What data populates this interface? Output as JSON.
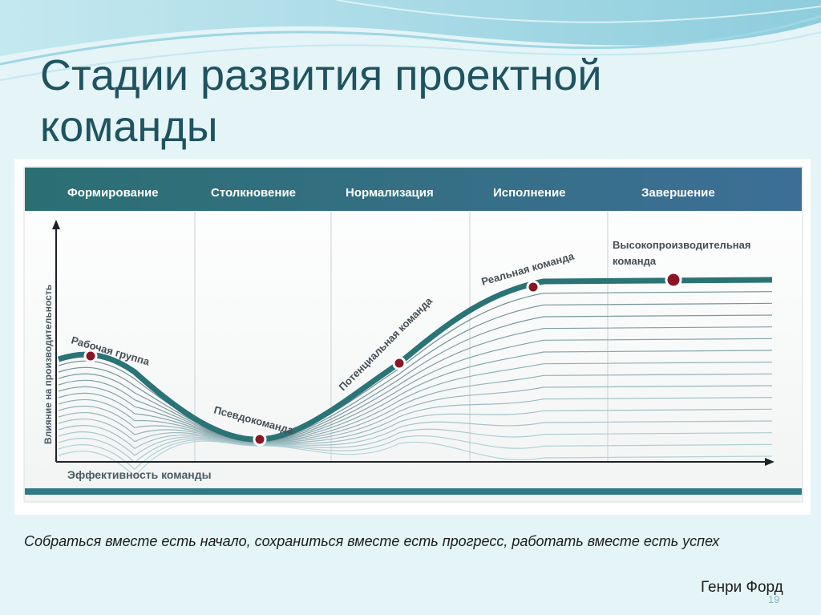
{
  "slide": {
    "title": "Стадии развития проектной команды",
    "page_number": "19"
  },
  "diagram": {
    "phases": [
      "Формирование",
      "Столкновение",
      "Нормализация",
      "Исполнение",
      "Завершение"
    ],
    "y_axis_label": "Влияние на производительность",
    "x_axis_label": "Эффективность команды",
    "stages": [
      {
        "label": "Рабочая группа"
      },
      {
        "label": "Псевдокоманда"
      },
      {
        "label": "Потенциальная команда"
      },
      {
        "label": "Реальная команда"
      },
      {
        "label": "Высокопроизводительная",
        "label2": "команда"
      }
    ],
    "colors": {
      "header_start": "#2b6f72",
      "header_end": "#3d6f96",
      "curve": "#2a7377",
      "marker": "#8a1524",
      "bottom_bar": "#2f7a86"
    }
  },
  "quote": {
    "text": "Собраться вместе есть начало, сохраниться вместе есть прогресс, работать вместе есть успех",
    "author": "Генри Форд"
  }
}
